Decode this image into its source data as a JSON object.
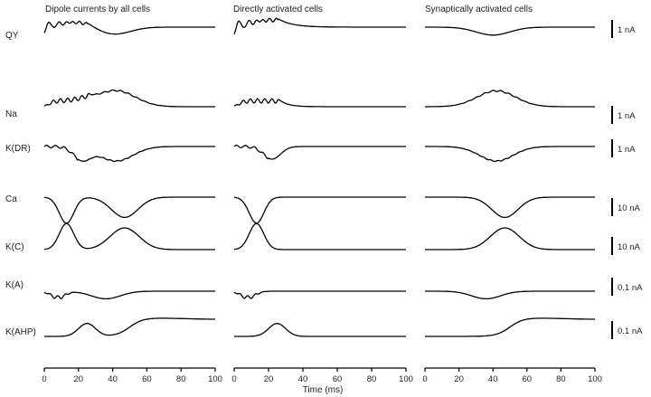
{
  "chart_data": {
    "type": "line",
    "panels": [
      {
        "title": "Dipole currents by all cells"
      },
      {
        "title": "Directly activated cells"
      },
      {
        "title": "Synaptically activated cells"
      }
    ],
    "rows": [
      {
        "label": "QY",
        "scale_bar": "1 nA",
        "shape": "qy"
      },
      {
        "label": "Na",
        "scale_bar": "1 nA",
        "shape": "na"
      },
      {
        "label": "K(DR)",
        "scale_bar": "1 nA",
        "shape": "kdr"
      },
      {
        "label": "Ca",
        "scale_bar": "10 nA",
        "shape": "ca"
      },
      {
        "label": "K(C)",
        "scale_bar": "10 nA",
        "shape": "kc"
      },
      {
        "label": "K(A)",
        "scale_bar": "0.1 nA",
        "shape": "ka"
      },
      {
        "label": "K(AHP)",
        "scale_bar": "0.1 nA",
        "shape": "kahp"
      }
    ],
    "xlabel": "Time (ms)",
    "xlim": [
      0,
      100
    ],
    "xticks": [
      "0",
      "20",
      "40",
      "60",
      "80",
      "100"
    ],
    "grid": false
  }
}
